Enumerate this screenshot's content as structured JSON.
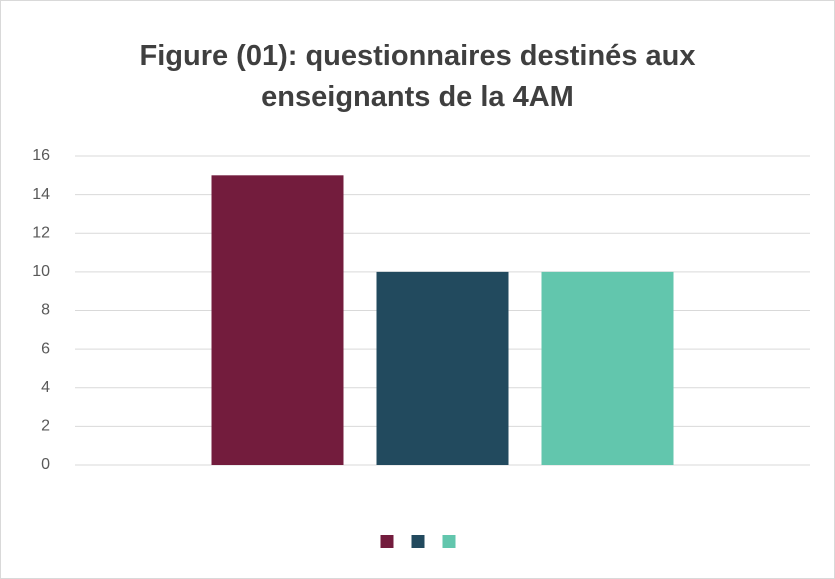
{
  "chart_data": {
    "type": "bar",
    "title": "Figure (01): questionnaires destinés aux enseignants de la 4AM",
    "categories": [
      null
    ],
    "series": [
      {
        "color": "#731c3d",
        "values": [
          15
        ]
      },
      {
        "color": "#224a5e",
        "values": [
          10
        ]
      },
      {
        "color": "#62c6ad",
        "values": [
          10
        ]
      }
    ],
    "ylim": [
      0,
      16
    ],
    "yticks": [
      0,
      2,
      4,
      6,
      8,
      10,
      12,
      14,
      16
    ],
    "grid": true,
    "legend": "bottom"
  }
}
